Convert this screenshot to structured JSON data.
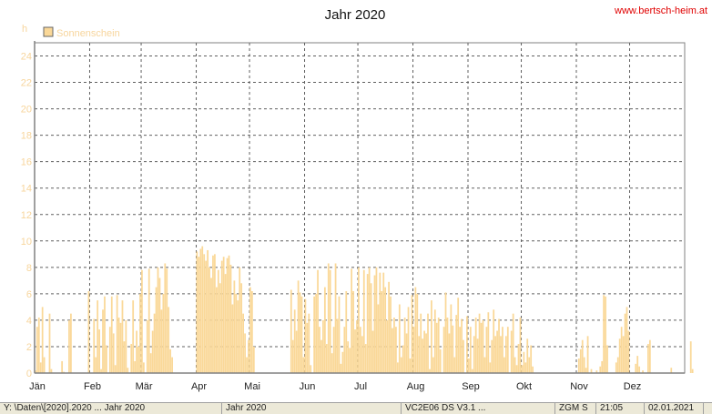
{
  "site": "www.bertsch-heim.at",
  "colors": {
    "bar": "#fad898",
    "grid": "#606060",
    "axis": "#808080",
    "site": "#e00000"
  },
  "chart_data": {
    "type": "bar",
    "title": "Jahr 2020",
    "ylabel": "h",
    "legend": {
      "entries": [
        "Sonnenschein"
      ],
      "placement": "top-left"
    },
    "ylim": [
      0,
      25
    ],
    "yticks": [
      0,
      2,
      4,
      6,
      8,
      10,
      12,
      14,
      16,
      18,
      20,
      22,
      24
    ],
    "grid": true,
    "months": [
      {
        "label": "Jän",
        "start_day": 1
      },
      {
        "label": "Feb",
        "start_day": 32
      },
      {
        "label": "Mär",
        "start_day": 61
      },
      {
        "label": "Apr",
        "start_day": 92
      },
      {
        "label": "Mai",
        "start_day": 122
      },
      {
        "label": "Jun",
        "start_day": 153
      },
      {
        "label": "Jul",
        "start_day": 183
      },
      {
        "label": "Aug",
        "start_day": 214
      },
      {
        "label": "Sep",
        "start_day": 245
      },
      {
        "label": "Okt",
        "start_day": 275
      },
      {
        "label": "Nov",
        "start_day": 306
      },
      {
        "label": "Dez",
        "start_day": 336
      }
    ],
    "series": [
      {
        "name": "Sonnenschein",
        "values": [
          0.2,
          3.5,
          4.2,
          0.8,
          5.0,
          1.2,
          0,
          0,
          4.5,
          0.3,
          0,
          0,
          0,
          0,
          0,
          0.9,
          0.1,
          0,
          0,
          4.0,
          4.5,
          0,
          0,
          0,
          0,
          0,
          0,
          0,
          0,
          0,
          6.2,
          0,
          0,
          4.1,
          1.2,
          5.5,
          3.3,
          0.3,
          4.8,
          5.8,
          2.1,
          0,
          3.5,
          5.8,
          3.0,
          0.6,
          5.9,
          4.2,
          3.8,
          5.5,
          2.4,
          4.0,
          0.4,
          0,
          2.2,
          5.5,
          0.9,
          3.2,
          2.0,
          6.0,
          7.8,
          0.8,
          0,
          4.0,
          7.9,
          1.5,
          3.2,
          4.5,
          6.5,
          8.0,
          7.2,
          4.8,
          6.0,
          8.3,
          7.9,
          5.0,
          1.8,
          1.2,
          0,
          0,
          0,
          0,
          0,
          0,
          0,
          0,
          0,
          0,
          0,
          0,
          0,
          9.2,
          8.8,
          9.4,
          9.6,
          9.0,
          8.5,
          9.3,
          8.0,
          7.2,
          8.9,
          9.0,
          6.5,
          7.8,
          6.8,
          8.5,
          8.8,
          7.5,
          8.7,
          8.9,
          8.2,
          5.2,
          7.0,
          6.0,
          5.5,
          8.0,
          6.8,
          4.5,
          3.0,
          1.2,
          2.5,
          6.5,
          6.2,
          2.0,
          0,
          0,
          0,
          0,
          0,
          0,
          0,
          0,
          0,
          0,
          0,
          0,
          0,
          0,
          0,
          0,
          0,
          0,
          0,
          0,
          6.3,
          2.5,
          4.8,
          3.2,
          7.0,
          6.1,
          5.8,
          1.2,
          5.6,
          3.8,
          4.5,
          0.6,
          0,
          5.8,
          6.0,
          7.8,
          3.5,
          2.5,
          4.0,
          6.5,
          2.2,
          8.3,
          7.8,
          1.5,
          3.5,
          8.3,
          4.1,
          5.8,
          0.7,
          1.6,
          3.5,
          6.2,
          2.4,
          1.9,
          7.9,
          6.2,
          3.3,
          4.0,
          8.0,
          3.5,
          2.8,
          7.8,
          2.2,
          7.5,
          8.0,
          6.8,
          3.2,
          7.4,
          8.0,
          5.2,
          7.6,
          6.2,
          7.6,
          6.5,
          4.0,
          6.9,
          5.8,
          3.4,
          4.2,
          3.5,
          0.8,
          5.2,
          1.2,
          2.1,
          4.2,
          3.0,
          5.0,
          1.1,
          5.9,
          3.5,
          6.5,
          6.0,
          2.8,
          4.5,
          2.6,
          3.2,
          3.0,
          4.5,
          0.3,
          5.5,
          1.2,
          4.8,
          3.8,
          4.2,
          1.8,
          0,
          3.5,
          6.1,
          4.2,
          3.0,
          5.2,
          3.6,
          1.2,
          4.4,
          5.7,
          3.5,
          4.1,
          2.5,
          0,
          4.3,
          1.1,
          3.5,
          0.3,
          2.8,
          4.2,
          2.6,
          4.5,
          3.8,
          4.0,
          1.2,
          3.5,
          4.6,
          0.8,
          2.5,
          4.8,
          2.8,
          3.2,
          4.1,
          2.8,
          3.5,
          1.2,
          2.8,
          3.5,
          0,
          3.2,
          4.5,
          1.2,
          0.6,
          2.2,
          4.2,
          0.6,
          1.6,
          0.8,
          2.6,
          1.2,
          2.1,
          0.5,
          0,
          0,
          0,
          0,
          0,
          0,
          0,
          0,
          0,
          0,
          0,
          0,
          0,
          0,
          0,
          0,
          0,
          0,
          0,
          0,
          0,
          0,
          0,
          0,
          0,
          1.1,
          1.8,
          2.5,
          1.2,
          0.4,
          2.8,
          0,
          0.3,
          0,
          0,
          0.2,
          0,
          0.5,
          0.9,
          5.9,
          5.8,
          2.1,
          0,
          0,
          0,
          0,
          0.8,
          1.2,
          2.6,
          3.5,
          2.8,
          4.5,
          5.0,
          3.2,
          0,
          0,
          0,
          0.7,
          1.3,
          0.5,
          0,
          0.2,
          0,
          0,
          2.2,
          2.5,
          0,
          0,
          0,
          0,
          0,
          0,
          0,
          0,
          0,
          0,
          0,
          0.4,
          0,
          0,
          0,
          0,
          0,
          0,
          0,
          0,
          0,
          0,
          2.4,
          0.3
        ]
      }
    ]
  },
  "status": {
    "cells": [
      "Y: \\Daten\\[2020].2020 ... Jahr 2020",
      "Jahr 2020",
      "VC2E06 DS V3.1 ...",
      "ZGM S",
      "21:05",
      "02.01.2021"
    ]
  }
}
